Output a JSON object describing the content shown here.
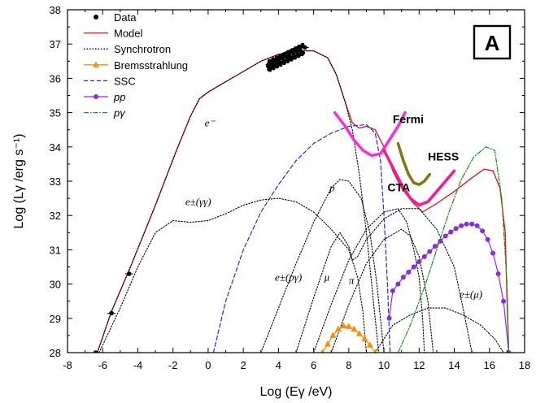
{
  "chart_data": {
    "type": "line",
    "panel_label": "A",
    "xlabel": "Log (Eγ /eV)",
    "ylabel": "Log (Lγ /erg s⁻¹)",
    "xlim": [
      -8,
      18
    ],
    "ylim": [
      28,
      38
    ],
    "x_ticks": [
      -8,
      -6,
      -4,
      -2,
      0,
      2,
      4,
      6,
      8,
      10,
      12,
      14,
      16,
      18
    ],
    "y_ticks": [
      28,
      29,
      30,
      31,
      32,
      33,
      34,
      35,
      36,
      37,
      38
    ],
    "legend_position": "top-left",
    "legend": [
      {
        "label": "Data",
        "style": "point"
      },
      {
        "label": "Model",
        "style": "solid"
      },
      {
        "label": "Synchrotron",
        "style": "dotted"
      },
      {
        "label": "Bremsstrahlung",
        "style": "triangle-line"
      },
      {
        "label": "SSC",
        "style": "dashed"
      },
      {
        "label": "pp",
        "style": "circle-line"
      },
      {
        "label": "pγ",
        "style": "dashdot"
      }
    ],
    "colors": {
      "data": "#000000",
      "model": "#e8101a",
      "synchrotron": "#000000",
      "bremsstrahlung": "#ff8c00",
      "ssc": "#1a2fe0",
      "pp": "#8a2be2",
      "pgamma": "#1f8f1f",
      "fermi": "#ff2cd6",
      "hess": "#7a7a10",
      "cta": "#ff1493"
    },
    "series": [
      {
        "name": "Model",
        "points": [
          [
            -6.3,
            28
          ],
          [
            -5.5,
            29.2
          ],
          [
            -4.5,
            30.4
          ],
          [
            -3,
            32.3
          ],
          [
            -1.8,
            33.9
          ],
          [
            -1,
            34.9
          ],
          [
            -0.5,
            35.4
          ],
          [
            0,
            35.6
          ],
          [
            1,
            35.9
          ],
          [
            2,
            36.2
          ],
          [
            3,
            36.5
          ],
          [
            4,
            36.7
          ],
          [
            5,
            36.8
          ],
          [
            6,
            36.8
          ],
          [
            6.8,
            36.6
          ],
          [
            7.3,
            36.1
          ],
          [
            7.8,
            35.3
          ],
          [
            8.2,
            34.7
          ],
          [
            8.6,
            34.55
          ],
          [
            9.0,
            34.6
          ],
          [
            9.5,
            34.5
          ],
          [
            10,
            34
          ],
          [
            10.5,
            33.3
          ],
          [
            11,
            32.8
          ],
          [
            11.6,
            32.4
          ],
          [
            12.2,
            32.1
          ],
          [
            13,
            32.35
          ],
          [
            14,
            32.7
          ],
          [
            15,
            33.1
          ],
          [
            15.7,
            33.35
          ],
          [
            16.2,
            33.3
          ],
          [
            16.6,
            32.8
          ],
          [
            16.9,
            31.5
          ],
          [
            17.0,
            29.5
          ],
          [
            17.1,
            28
          ]
        ]
      },
      {
        "name": "Synchrotron e-",
        "points": [
          [
            -6.3,
            28
          ],
          [
            -5.5,
            29.2
          ],
          [
            -4.5,
            30.4
          ],
          [
            -3,
            32.3
          ],
          [
            -1.8,
            33.9
          ],
          [
            -1,
            34.9
          ],
          [
            -0.5,
            35.4
          ],
          [
            0,
            35.6
          ],
          [
            1,
            35.9
          ],
          [
            2,
            36.2
          ],
          [
            3,
            36.5
          ],
          [
            4,
            36.7
          ],
          [
            5,
            36.8
          ],
          [
            6,
            36.8
          ],
          [
            6.8,
            36.6
          ],
          [
            7.3,
            36.1
          ],
          [
            7.8,
            35.3
          ],
          [
            8.2,
            34.5
          ],
          [
            8.6,
            33.2
          ],
          [
            9.0,
            31.5
          ],
          [
            9.4,
            29.5
          ],
          [
            9.7,
            28
          ]
        ]
      },
      {
        "name": "Synchrotron e± (γγ)",
        "points": [
          [
            -6.2,
            28
          ],
          [
            -5,
            29.3
          ],
          [
            -4,
            30.5
          ],
          [
            -3,
            31.5
          ],
          [
            -2,
            31.85
          ],
          [
            -1,
            31.8
          ],
          [
            0,
            31.85
          ],
          [
            1,
            32.05
          ],
          [
            2,
            32.3
          ],
          [
            3,
            32.45
          ],
          [
            4,
            32.5
          ],
          [
            5,
            32.4
          ],
          [
            6,
            32.1
          ],
          [
            7,
            31.6
          ],
          [
            8,
            31
          ],
          [
            8.5,
            30.2
          ],
          [
            8.8,
            29.2
          ],
          [
            9.0,
            28
          ]
        ]
      },
      {
        "name": "Synchrotron p",
        "points": [
          [
            3.0,
            28
          ],
          [
            4,
            29.3
          ],
          [
            5,
            30.6
          ],
          [
            6,
            31.8
          ],
          [
            7,
            32.8
          ],
          [
            7.5,
            33.05
          ],
          [
            8,
            33.0
          ],
          [
            8.7,
            32.5
          ],
          [
            9.2,
            31.5
          ],
          [
            9.6,
            30
          ],
          [
            9.9,
            28.5
          ],
          [
            10,
            28
          ]
        ]
      },
      {
        "name": "Synchrotron e± (pγ)",
        "points": [
          [
            6.0,
            28
          ],
          [
            7,
            29.4
          ],
          [
            8,
            30.7
          ],
          [
            9,
            31.6
          ],
          [
            10,
            32.1
          ],
          [
            10.8,
            32.2
          ],
          [
            11.3,
            31.8
          ],
          [
            11.7,
            31
          ],
          [
            12,
            30.2
          ],
          [
            12.2,
            29
          ],
          [
            12.3,
            28
          ]
        ]
      },
      {
        "name": "Synchrotron μ",
        "points": [
          [
            5.0,
            28
          ],
          [
            6,
            29.6
          ],
          [
            7,
            31.1
          ],
          [
            7.5,
            31.5
          ],
          [
            8,
            31.1
          ],
          [
            8.2,
            30.7
          ],
          [
            8.5,
            30.8
          ],
          [
            9,
            31.3
          ],
          [
            10,
            31.9
          ],
          [
            11,
            32.2
          ],
          [
            12,
            32.2
          ],
          [
            13,
            31.6
          ],
          [
            14,
            30.5
          ],
          [
            14.5,
            29.3
          ],
          [
            15,
            28
          ]
        ]
      },
      {
        "name": "Synchrotron π",
        "points": [
          [
            7.0,
            28
          ],
          [
            8,
            29.4
          ],
          [
            9,
            30.6
          ],
          [
            10,
            31.3
          ],
          [
            11,
            31.6
          ],
          [
            11.5,
            31.4
          ],
          [
            12,
            30.8
          ],
          [
            12.5,
            29.5
          ],
          [
            12.8,
            28
          ]
        ]
      },
      {
        "name": "Synchrotron e± (μ)",
        "points": [
          [
            9.5,
            28
          ],
          [
            10.5,
            28.8
          ],
          [
            11.5,
            29.1
          ],
          [
            12.5,
            29.3
          ],
          [
            13.5,
            29.3
          ],
          [
            14.5,
            29.1
          ],
          [
            15.5,
            28.8
          ],
          [
            16.3,
            28.4
          ],
          [
            16.8,
            28
          ]
        ]
      },
      {
        "name": "SSC",
        "points": [
          [
            0.3,
            28
          ],
          [
            1,
            29.5
          ],
          [
            2,
            31
          ],
          [
            3,
            32.1
          ],
          [
            4,
            32.9
          ],
          [
            5,
            33.6
          ],
          [
            6,
            34.1
          ],
          [
            7,
            34.4
          ],
          [
            8,
            34.6
          ],
          [
            9,
            34.65
          ],
          [
            9.5,
            34.4
          ],
          [
            9.8,
            33.6
          ],
          [
            10,
            32
          ],
          [
            10.2,
            30
          ],
          [
            10.35,
            28
          ]
        ]
      },
      {
        "name": "Bremsstrahlung",
        "points": [
          [
            6.5,
            28
          ],
          [
            6.8,
            28.25
          ],
          [
            7.1,
            28.5
          ],
          [
            7.4,
            28.68
          ],
          [
            7.7,
            28.78
          ],
          [
            8.0,
            28.76
          ],
          [
            8.3,
            28.68
          ],
          [
            8.6,
            28.55
          ],
          [
            8.9,
            28.4
          ],
          [
            9.2,
            28.22
          ],
          [
            9.5,
            28
          ]
        ]
      },
      {
        "name": "pp",
        "points": [
          [
            10.3,
            29
          ],
          [
            10.5,
            29.8
          ],
          [
            10.8,
            30.0
          ],
          [
            11.1,
            30.2
          ],
          [
            11.4,
            30.35
          ],
          [
            11.7,
            30.5
          ],
          [
            12.0,
            30.65
          ],
          [
            12.3,
            30.8
          ],
          [
            12.6,
            30.95
          ],
          [
            12.9,
            31.1
          ],
          [
            13.2,
            31.25
          ],
          [
            13.5,
            31.4
          ],
          [
            13.8,
            31.52
          ],
          [
            14.1,
            31.62
          ],
          [
            14.4,
            31.7
          ],
          [
            14.7,
            31.75
          ],
          [
            15.0,
            31.75
          ],
          [
            15.3,
            31.7
          ],
          [
            15.6,
            31.55
          ],
          [
            15.9,
            31.3
          ],
          [
            16.2,
            30.9
          ],
          [
            16.5,
            30.3
          ],
          [
            16.8,
            29.5
          ],
          [
            17.1,
            28
          ]
        ]
      },
      {
        "name": "pγ",
        "points": [
          [
            10.8,
            28
          ],
          [
            11.5,
            28.8
          ],
          [
            12.3,
            29.9
          ],
          [
            13,
            31.0
          ],
          [
            13.7,
            32.1
          ],
          [
            14.4,
            33.05
          ],
          [
            15.1,
            33.7
          ],
          [
            15.8,
            34.0
          ],
          [
            16.3,
            33.9
          ],
          [
            16.7,
            32.5
          ],
          [
            17.0,
            30
          ],
          [
            17.1,
            28
          ]
        ]
      },
      {
        "name": "Data",
        "points": [
          [
            -6.4,
            28.0
          ],
          [
            -5.5,
            29.15
          ],
          [
            -4.5,
            30.3
          ],
          [
            3.5,
            36.4
          ],
          [
            4.5,
            36.6
          ],
          [
            5.5,
            36.9
          ]
        ]
      },
      {
        "name": "Fermi",
        "points": [
          [
            7.2,
            35.0
          ],
          [
            7.8,
            34.6
          ],
          [
            8.3,
            34.2
          ],
          [
            8.8,
            33.9
          ],
          [
            9.3,
            33.75
          ],
          [
            9.8,
            33.8
          ],
          [
            10.3,
            34.2
          ],
          [
            10.8,
            34.6
          ],
          [
            11.2,
            35.0
          ]
        ]
      },
      {
        "name": "HESS",
        "points": [
          [
            10.8,
            34.1
          ],
          [
            11.1,
            33.6
          ],
          [
            11.4,
            33.2
          ],
          [
            11.7,
            32.95
          ],
          [
            12.0,
            32.9
          ],
          [
            12.3,
            33.0
          ],
          [
            12.6,
            33.2
          ]
        ]
      },
      {
        "name": "CTA",
        "points": [
          [
            10.0,
            33.9
          ],
          [
            10.5,
            33.4
          ],
          [
            11.0,
            32.9
          ],
          [
            11.5,
            32.5
          ],
          [
            12.0,
            32.3
          ],
          [
            12.5,
            32.4
          ],
          [
            13.0,
            32.7
          ],
          [
            13.5,
            33.0
          ],
          [
            14.0,
            33.3
          ]
        ]
      }
    ],
    "annotations": [
      {
        "text": "e⁻",
        "x": -0.2,
        "y": 34.6
      },
      {
        "text": "e±(γγ)",
        "x": -1.3,
        "y": 32.3
      },
      {
        "text": "p",
        "x": 6.9,
        "y": 32.7
      },
      {
        "text": "e±(pγ)",
        "x": 3.8,
        "y": 30.1
      },
      {
        "text": "μ",
        "x": 6.6,
        "y": 30.1
      },
      {
        "text": "π",
        "x": 8.0,
        "y": 30.0
      },
      {
        "text": "e±(μ)",
        "x": 14.3,
        "y": 29.6
      },
      {
        "text": "Fermi",
        "x": 10.5,
        "y": 34.7,
        "bold": true
      },
      {
        "text": "HESS",
        "x": 12.5,
        "y": 33.6,
        "bold": true
      },
      {
        "text": "CTA",
        "x": 10.2,
        "y": 32.7,
        "bold": true
      }
    ]
  }
}
